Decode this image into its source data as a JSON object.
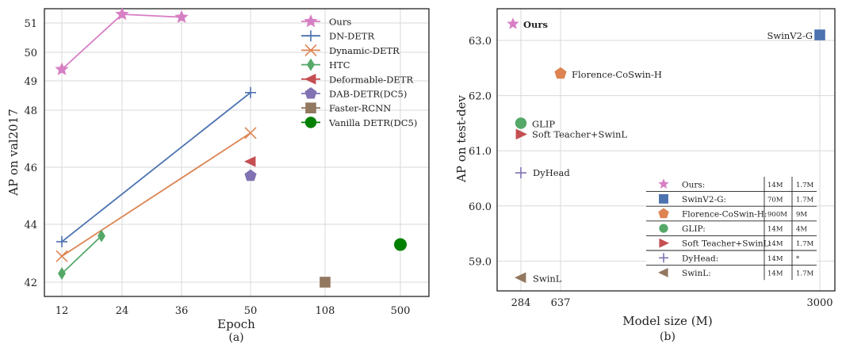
{
  "chart_data": [
    {
      "type": "line",
      "caption": "(a)",
      "xlabel": "Epoch",
      "ylabel": "AP on val2017",
      "x_ticks": [
        "12",
        "24",
        "36",
        "50",
        "108",
        "500"
      ],
      "y_ticks": [
        42,
        44,
        46,
        48,
        49,
        50,
        51
      ],
      "y_tick_labels": [
        "42",
        "44",
        "46",
        "48",
        "49",
        "50",
        "51"
      ],
      "grid": true,
      "legend_position": "top-right",
      "series": [
        {
          "name": "Ours",
          "marker": "star",
          "color": "#d77fc4",
          "points": [
            {
              "x": "12",
              "y": 49.4
            },
            {
              "x": "24",
              "y": 51.3
            },
            {
              "x": "36",
              "y": 51.2
            }
          ]
        },
        {
          "name": "DN-DETR",
          "marker": "plus",
          "color": "#4c72b0",
          "points": [
            {
              "x": "12",
              "y": 43.4
            },
            {
              "x": "50",
              "y": 48.6
            }
          ]
        },
        {
          "name": "Dynamic-DETR",
          "marker": "x",
          "color": "#dd8452",
          "points": [
            {
              "x": "12",
              "y": 42.9
            },
            {
              "x": "50",
              "y": 47.2
            }
          ]
        },
        {
          "name": "HTC",
          "marker": "diamond",
          "color": "#55a868",
          "points": [
            {
              "x": "12",
              "y": 42.3
            },
            {
              "x": "20",
              "y": 43.6
            }
          ]
        },
        {
          "name": "Deformable-DETR",
          "marker": "triangle-left",
          "color": "#c44e52",
          "points": [
            {
              "x": "50",
              "y": 46.2
            }
          ]
        },
        {
          "name": "DAB-DETR(DC5)",
          "marker": "pentagon",
          "color": "#8172b3",
          "points": [
            {
              "x": "50",
              "y": 45.7
            }
          ]
        },
        {
          "name": "Faster-RCNN",
          "marker": "square",
          "color": "#937860",
          "points": [
            {
              "x": "108",
              "y": 42.0
            }
          ]
        },
        {
          "name": "Vanilla DETR(DC5)",
          "marker": "circle",
          "color": "#008000",
          "points": [
            {
              "x": "500",
              "y": 43.3
            }
          ]
        }
      ]
    },
    {
      "type": "scatter",
      "caption": "(b)",
      "xlabel": "Model size (M)",
      "ylabel": "AP on test-dev",
      "x_ticks": [
        284,
        637,
        3000
      ],
      "x_tick_labels": [
        "284",
        "637",
        "3000"
      ],
      "y_ticks": [
        59.0,
        60.0,
        61.0,
        62.0,
        63.0
      ],
      "y_tick_labels": [
        "59.0",
        "60.0",
        "61.0",
        "62.0",
        "63.0"
      ],
      "ylim": [
        58.5,
        63.45
      ],
      "grid": true,
      "legend_position": "bottom-right",
      "points": [
        {
          "name": "Ours",
          "x": 218,
          "y": 63.3,
          "marker": "star",
          "color": "#d77fc4",
          "bold": true,
          "col1": "14M",
          "col2": "1.7M"
        },
        {
          "name": "SwinV2-G",
          "x": 3000,
          "y": 63.1,
          "marker": "square",
          "color": "#4c72b0",
          "bold": false,
          "col1": "70M",
          "col2": "1.7M"
        },
        {
          "name": "Florence-CoSwin-H",
          "x": 637,
          "y": 62.4,
          "marker": "pentagon",
          "color": "#dd8452",
          "bold": false,
          "col1": "900M",
          "col2": "9M"
        },
        {
          "name": "GLIP",
          "x": 284,
          "y": 61.5,
          "marker": "circle",
          "color": "#55a868",
          "bold": false,
          "col1": "14M",
          "col2": "4M"
        },
        {
          "name": "Soft Teacher+SwinL",
          "x": 284,
          "y": 61.3,
          "marker": "triangle-right",
          "color": "#c44e52",
          "bold": false,
          "col1": "14M",
          "col2": "1.7M"
        },
        {
          "name": "DyHead",
          "x": 284,
          "y": 60.6,
          "marker": "plus",
          "color": "#8172b3",
          "bold": false,
          "col1": "14M",
          "col2": "*"
        },
        {
          "name": "SwinL",
          "x": 284,
          "y": 58.7,
          "marker": "triangle-left",
          "color": "#937860",
          "bold": false,
          "col1": "14M",
          "col2": "1.7M"
        }
      ],
      "legend": [
        {
          "label": "Ours:",
          "col1": "14M",
          "col2": "1.7M"
        },
        {
          "label": "SwinV2-G:",
          "col1": "70M",
          "col2": "1.7M"
        },
        {
          "label": "Florence-CoSwin-H:",
          "col1": "900M",
          "col2": "9M"
        },
        {
          "label": "GLIP:",
          "col1": "14M",
          "col2": "4M"
        },
        {
          "label": "Soft Teacher+SwinL:",
          "col1": "14M",
          "col2": "1.7M"
        },
        {
          "label": "DyHead:",
          "col1": "14M",
          "col2": "*"
        },
        {
          "label": "SwinL:",
          "col1": "14M",
          "col2": "1.7M"
        }
      ]
    }
  ]
}
